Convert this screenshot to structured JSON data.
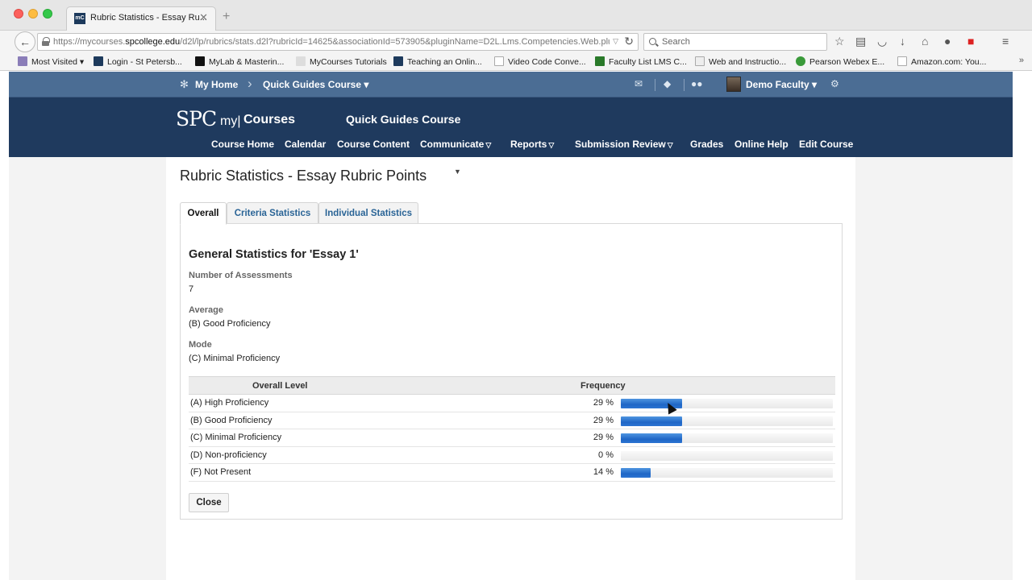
{
  "browser": {
    "tab_title": "Rubric Statistics - Essay Ru...",
    "tab_favicon_text": "mC",
    "url_prefix": "https://mycourses.",
    "url_domain": "spcollege.edu",
    "url_rest": "/d2l/lp/rubrics/stats.d2l?rubricId=14625&associationId=573905&pluginName=D2L.Lms.Competencies.Web.plug",
    "search_placeholder": "Search",
    "bookmarks": [
      "Most Visited",
      "Login - St Petersb...",
      "MyLab & Masterin...",
      "MyCourses Tutorials",
      "Teaching an Onlin...",
      "Video Code Conve...",
      "Faculty List LMS C...",
      "Web and Instructio...",
      "Pearson Webex E...",
      "Amazon.com: You..."
    ]
  },
  "topbar": {
    "my_home": "My Home",
    "course_dropdown": "Quick Guides Course",
    "user": "Demo Faculty"
  },
  "header": {
    "logo_spc": "SPC",
    "logo_my": "my|",
    "logo_courses": "Courses",
    "course_title": "Quick Guides Course",
    "nav": [
      "Course Home",
      "Calendar",
      "Course Content",
      "Communicate",
      "Reports",
      "Submission Review",
      "Grades",
      "Online Help",
      "Edit Course"
    ]
  },
  "main": {
    "page_title": "Rubric Statistics - Essay Rubric Points",
    "tabs": [
      "Overall",
      "Criteria Statistics",
      "Individual Statistics"
    ],
    "general_title": "General Statistics for 'Essay 1'",
    "assessments_label": "Number of Assessments",
    "assessments_value": "7",
    "average_label": "Average",
    "average_value": "(B) Good Proficiency",
    "mode_label": "Mode",
    "mode_value": "(C) Minimal Proficiency",
    "table": {
      "col_level": "Overall Level",
      "col_frequency": "Frequency",
      "rows": [
        {
          "level": "(A) High Proficiency",
          "pct_label": "29 %",
          "pct": 29
        },
        {
          "level": "(B) Good Proficiency",
          "pct_label": "29 %",
          "pct": 29
        },
        {
          "level": "(C) Minimal Proficiency",
          "pct_label": "29 %",
          "pct": 29
        },
        {
          "level": "(D) Non-proficiency",
          "pct_label": "0 %",
          "pct": 0
        },
        {
          "level": "(F) Not Present",
          "pct_label": "14 %",
          "pct": 14
        }
      ]
    },
    "close_label": "Close"
  },
  "colors": {
    "topbar": "#4b6d94",
    "header": "#1f3a5e",
    "bar_fill": "#1f66c6",
    "tab_link": "#2a6496"
  }
}
